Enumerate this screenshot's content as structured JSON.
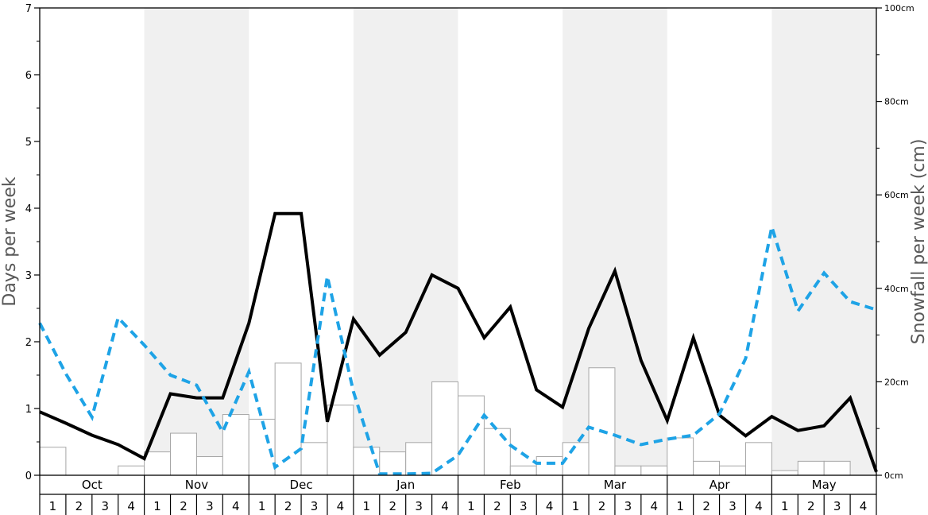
{
  "chart_data": {
    "type": "bar+line",
    "left_axis": {
      "label": "Days per week",
      "range": [
        0,
        7
      ],
      "major_ticks": [
        0,
        1,
        2,
        3,
        4,
        5,
        6,
        7
      ]
    },
    "right_axis": {
      "label": "Snowfall per week (cm)",
      "range": [
        0,
        100
      ],
      "ticks": [
        "0cm",
        "20cm",
        "40cm",
        "60cm",
        "80cm",
        "100cm"
      ]
    },
    "months": [
      "Oct",
      "Nov",
      "Dec",
      "Jan",
      "Feb",
      "Mar",
      "Apr",
      "May"
    ],
    "weeks_per_month": [
      "1",
      "2",
      "3",
      "4"
    ],
    "grid": false,
    "series": [
      {
        "kind": "bar",
        "axis": "right",
        "unit": "cm",
        "values": [
          6,
          0,
          0,
          2,
          5,
          9,
          4,
          13,
          12,
          24,
          7,
          15,
          6,
          5,
          7,
          20,
          17,
          10,
          2,
          4,
          7,
          23,
          2,
          2,
          8,
          3,
          2,
          7,
          1,
          3,
          3,
          0
        ]
      },
      {
        "kind": "line",
        "axis": "left",
        "style": "solid",
        "color": "#000000",
        "values": [
          0.95,
          0.78,
          0.6,
          0.46,
          0.25,
          1.22,
          1.16,
          1.16,
          2.28,
          3.92,
          3.92,
          0.8,
          2.34,
          1.8,
          2.14,
          3.0,
          2.8,
          2.06,
          2.52,
          1.28,
          1.02,
          2.2,
          3.06,
          1.72,
          0.82,
          2.06,
          0.9,
          0.59,
          0.88,
          0.67,
          0.74,
          1.16,
          0.05
        ]
      },
      {
        "kind": "line",
        "axis": "left",
        "style": "dashed",
        "color": "#1EA3E6",
        "values": [
          2.28,
          1.52,
          0.87,
          2.36,
          1.95,
          1.5,
          1.35,
          0.65,
          1.55,
          0.12,
          0.4,
          2.98,
          1.25,
          0.02,
          0.02,
          0.03,
          0.3,
          0.9,
          0.45,
          0.18,
          0.18,
          0.72,
          0.6,
          0.46,
          0.54,
          0.6,
          0.92,
          1.75,
          3.72,
          2.46,
          3.03,
          2.6,
          2.48
        ]
      }
    ]
  }
}
